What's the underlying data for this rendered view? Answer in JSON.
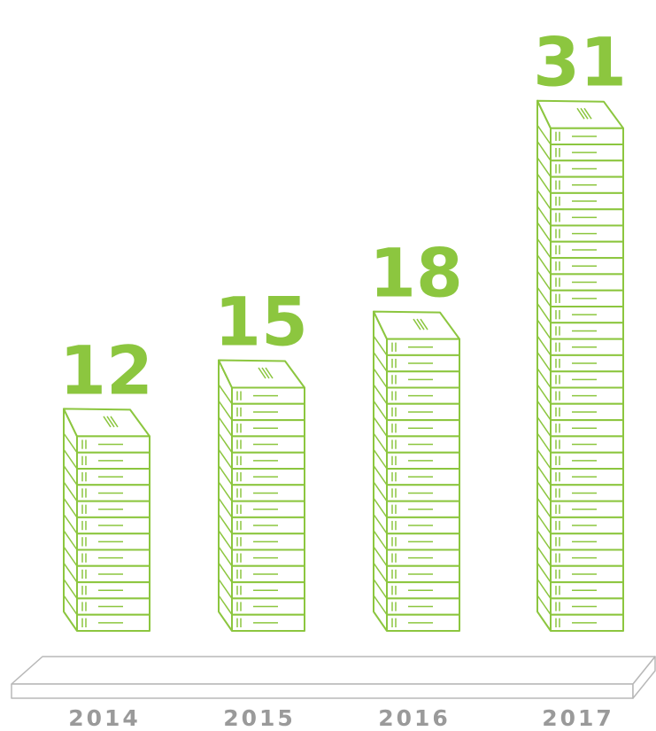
{
  "chart_data": {
    "type": "pictogram",
    "categories": [
      "2014",
      "2015",
      "2016",
      "2017"
    ],
    "values": [
      12,
      15,
      18,
      31
    ],
    "color": "#8cc63f"
  }
}
